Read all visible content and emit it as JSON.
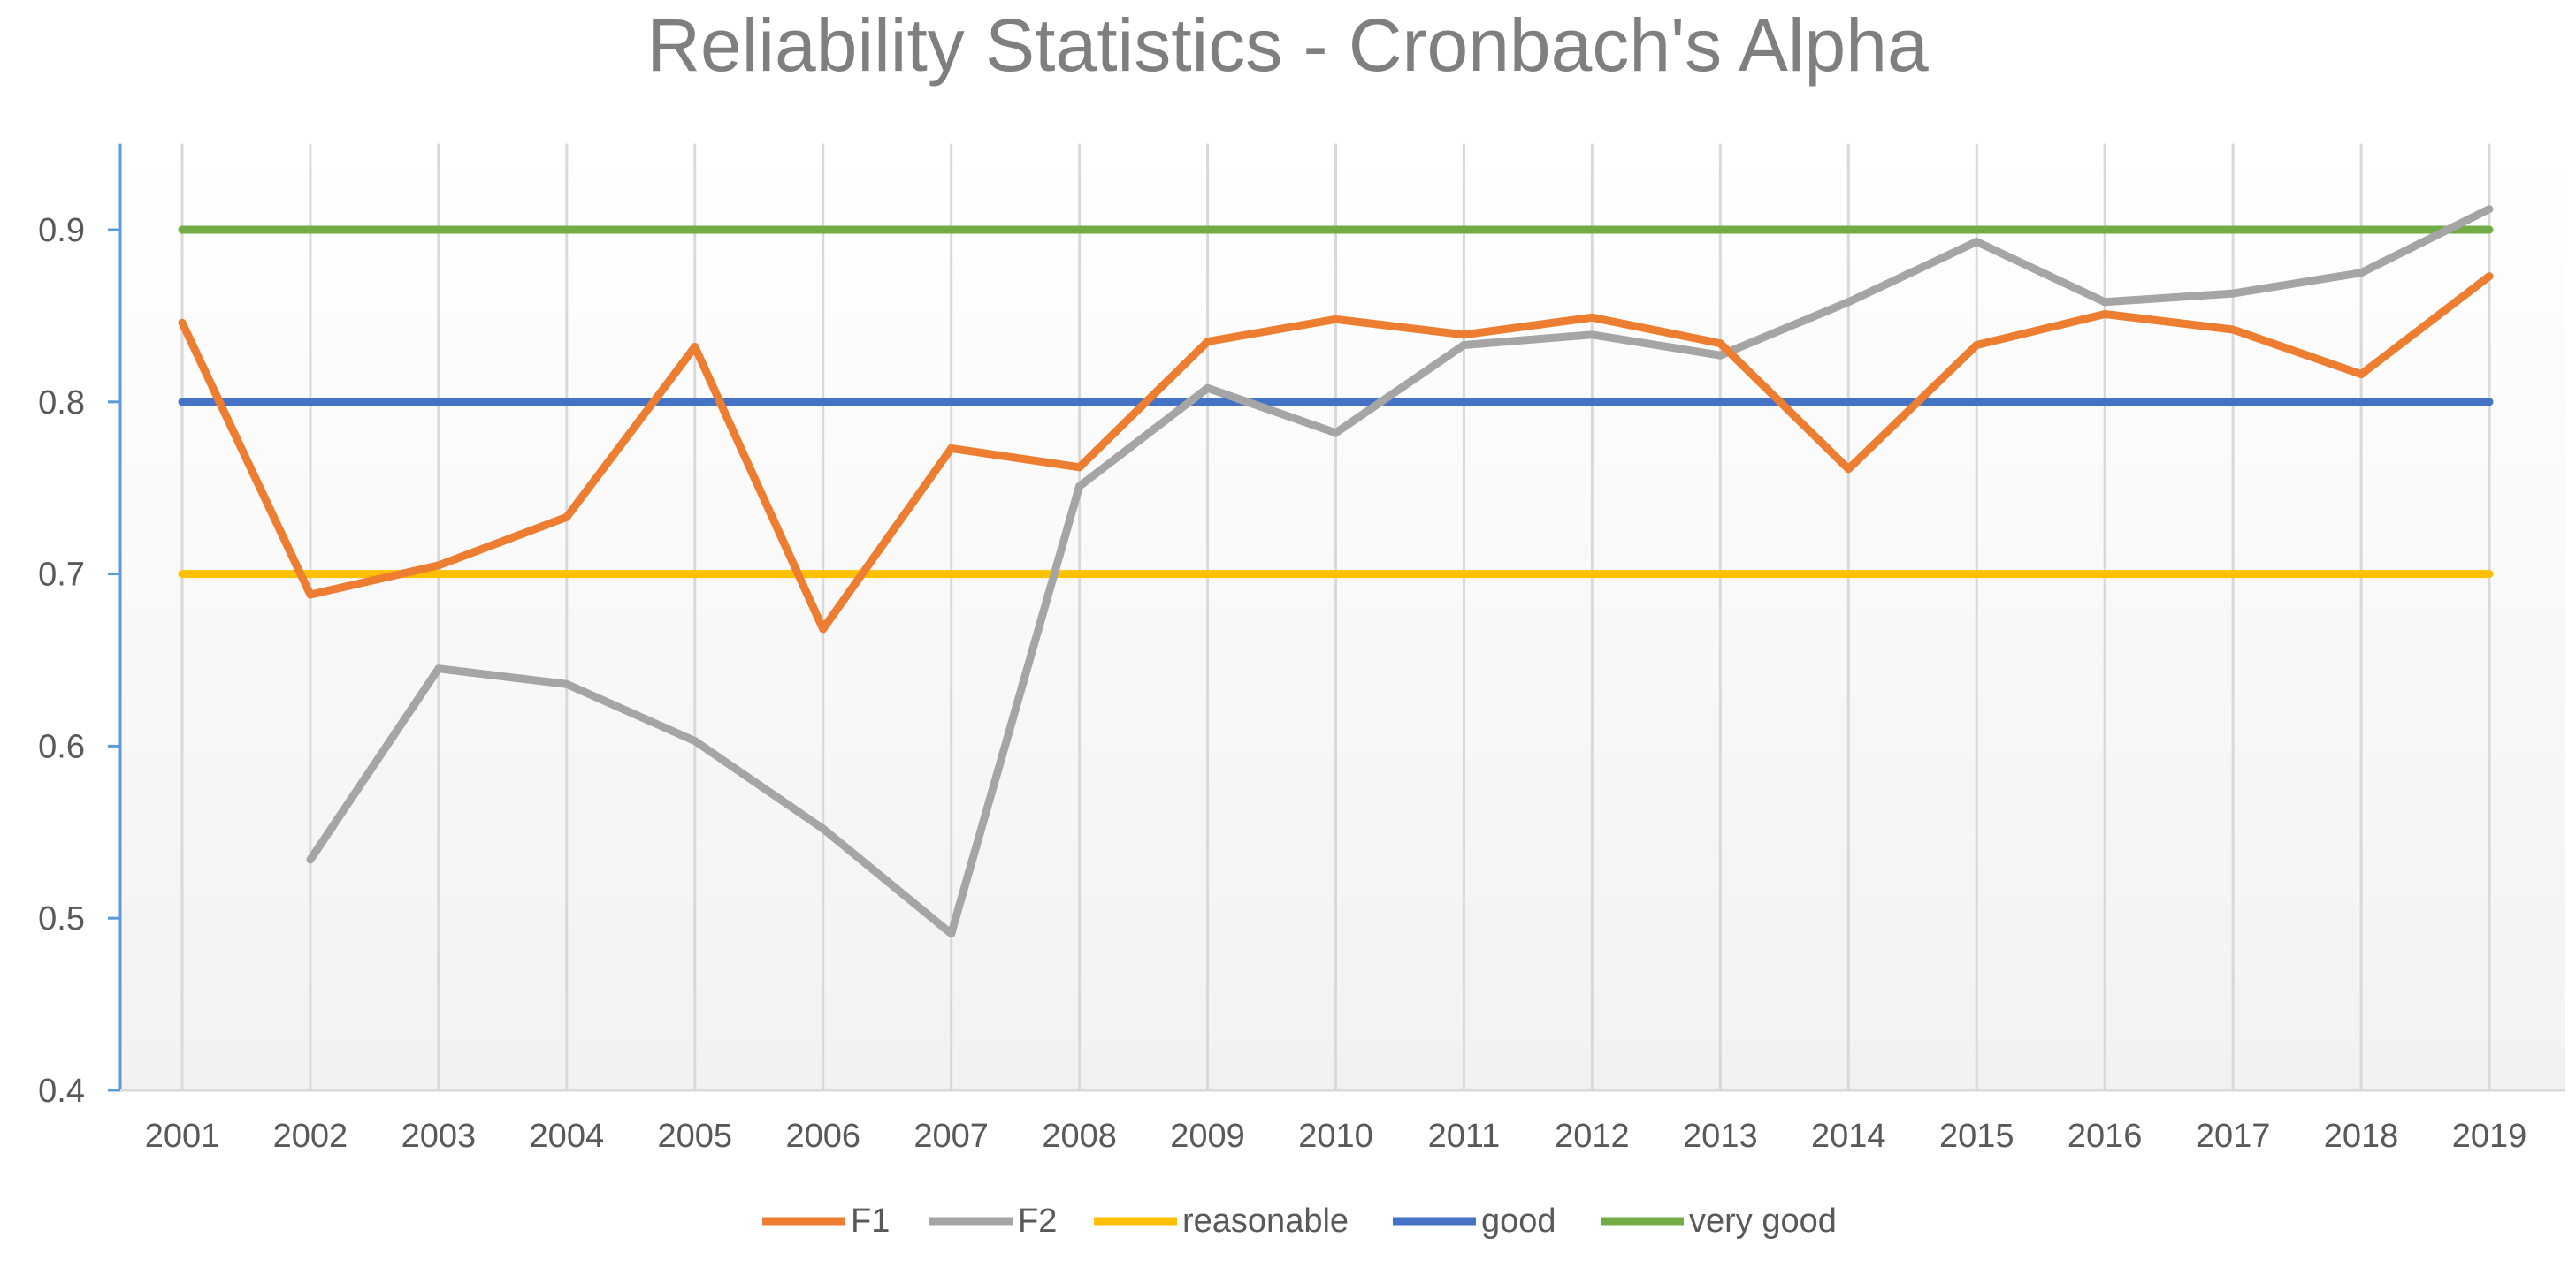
{
  "chart_data": {
    "type": "line",
    "title": "Reliability Statistics - Cronbach's Alpha",
    "xlabel": "",
    "ylabel": "",
    "categories": [
      "2001",
      "2002",
      "2003",
      "2004",
      "2005",
      "2006",
      "2007",
      "2008",
      "2009",
      "2010",
      "2011",
      "2012",
      "2013",
      "2014",
      "2015",
      "2016",
      "2017",
      "2018",
      "2019"
    ],
    "ylim": [
      0.4,
      0.95
    ],
    "yticks": [
      0.4,
      0.5,
      0.6,
      0.7,
      0.8,
      0.9
    ],
    "ytick_labels": [
      "0.4",
      "0.5",
      "0.6",
      "0.7",
      "0.8",
      "0.9"
    ],
    "grid": "vertical",
    "legend_position": "bottom",
    "series": [
      {
        "name": "F1",
        "color": "#ED7D31",
        "values": [
          0.846,
          0.688,
          0.705,
          0.733,
          0.832,
          0.668,
          0.773,
          0.762,
          0.835,
          0.848,
          0.839,
          0.849,
          0.834,
          0.761,
          0.833,
          0.851,
          0.842,
          0.816,
          0.873
        ]
      },
      {
        "name": "F2",
        "color": "#A5A5A5",
        "values": [
          null,
          0.534,
          0.645,
          0.636,
          0.603,
          0.552,
          0.491,
          0.751,
          0.808,
          0.782,
          0.833,
          0.839,
          0.827,
          0.858,
          0.893,
          0.858,
          0.863,
          0.875,
          0.912
        ]
      },
      {
        "name": "reasonable",
        "color": "#FFC000",
        "values": [
          0.7,
          0.7,
          0.7,
          0.7,
          0.7,
          0.7,
          0.7,
          0.7,
          0.7,
          0.7,
          0.7,
          0.7,
          0.7,
          0.7,
          0.7,
          0.7,
          0.7,
          0.7,
          0.7
        ]
      },
      {
        "name": "good",
        "color": "#4472C4",
        "values": [
          0.8,
          0.8,
          0.8,
          0.8,
          0.8,
          0.8,
          0.8,
          0.8,
          0.8,
          0.8,
          0.8,
          0.8,
          0.8,
          0.8,
          0.8,
          0.8,
          0.8,
          0.8,
          0.8
        ]
      },
      {
        "name": "very good",
        "color": "#70AD47",
        "values": [
          0.9,
          0.9,
          0.9,
          0.9,
          0.9,
          0.9,
          0.9,
          0.9,
          0.9,
          0.9,
          0.9,
          0.9,
          0.9,
          0.9,
          0.9,
          0.9,
          0.9,
          0.9,
          0.9
        ]
      }
    ]
  },
  "colors": {
    "axis_line": "#5B9BD5",
    "gridline": "#D9D9D9",
    "title": "#7F7F7F",
    "tick_text": "#595959",
    "plot_bg_top": "#FFFFFF",
    "plot_bg_bottom": "#F2F2F2"
  }
}
